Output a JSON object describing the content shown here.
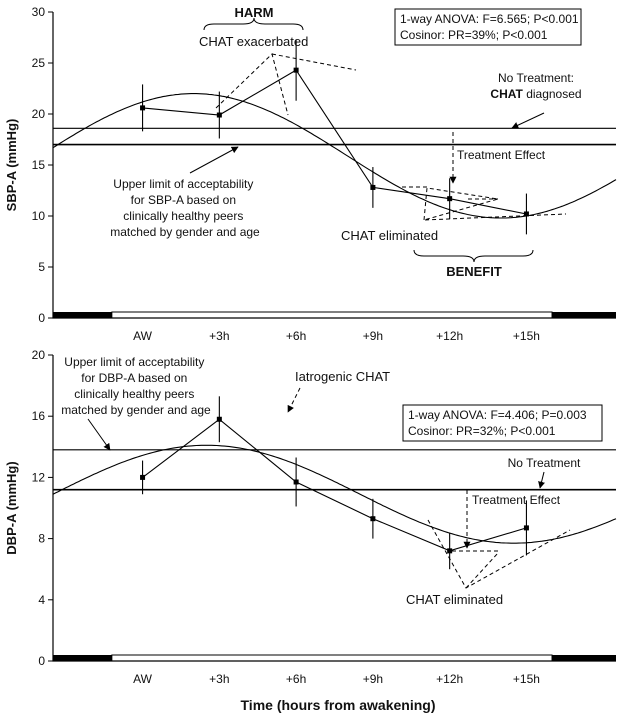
{
  "chart_data": [
    {
      "type": "line",
      "ylabel": "SBP-A (mmHg)",
      "ylim": [
        0,
        30
      ],
      "yticks": [
        0,
        5,
        10,
        15,
        20,
        25,
        30
      ],
      "xlim": [
        -3.5,
        18.5
      ],
      "categories": [
        "AW",
        "+3h",
        "+6h",
        "+9h",
        "+12h",
        "+15h"
      ],
      "category_x": [
        0,
        3,
        6,
        9,
        12,
        15
      ],
      "series": [
        {
          "x": [
            0,
            3,
            6,
            9,
            12,
            15
          ],
          "values": [
            20.6,
            19.9,
            24.3,
            12.8,
            11.7,
            10.2
          ],
          "err": [
            2.3,
            2.3,
            3.0,
            2.0,
            2.0,
            2.0
          ]
        }
      ],
      "cosinor": {
        "mesor": 15.9,
        "amplitude": 6.1,
        "peak": 2.0,
        "period": 24
      },
      "lines": [
        {
          "y": 18.6
        },
        {
          "y": 17.0
        }
      ],
      "stats_box": [
        "1-way ANOVA: F=6.565; P<0.001",
        "Cosinor: PR=39%; P<0.001"
      ],
      "annotations": {
        "harm": "HARM",
        "chat_exacerbated": "CHAT exacerbated",
        "no_treatment_1": "No Treatment:",
        "chat_diagnosed_bold": "CHAT",
        "chat_diagnosed_rest": " diagnosed",
        "treatment_effect": "Treatment Effect",
        "upper_limit": [
          "Upper limit of acceptability",
          "for SBP-A based on",
          "clinically healthy peers",
          "matched by gender and age"
        ],
        "chat_eliminated": "CHAT eliminated",
        "benefit": "BENEFIT"
      },
      "light_dark_bar": {
        "dark_until": -1.2,
        "light_until": 16.0
      }
    },
    {
      "type": "line",
      "ylabel": "DBP-A (mmHg)",
      "xlabel": "Time (hours from awakening)",
      "ylim": [
        0,
        20
      ],
      "yticks": [
        0,
        4,
        8,
        12,
        16,
        20
      ],
      "xlim": [
        -3.5,
        18.5
      ],
      "categories": [
        "AW",
        "+3h",
        "+6h",
        "+9h",
        "+12h",
        "+15h"
      ],
      "category_x": [
        0,
        3,
        6,
        9,
        12,
        15
      ],
      "series": [
        {
          "x": [
            0,
            3,
            6,
            9,
            12,
            15
          ],
          "values": [
            12.0,
            15.8,
            11.7,
            9.3,
            7.2,
            8.7
          ],
          "err": [
            1.1,
            1.5,
            1.6,
            1.3,
            1.2,
            1.8
          ]
        }
      ],
      "cosinor": {
        "mesor": 10.9,
        "amplitude": 3.2,
        "peak": 2.5,
        "period": 24
      },
      "lines": [
        {
          "y": 13.8
        },
        {
          "y": 11.2
        }
      ],
      "stats_box": [
        "1-way ANOVA: F=4.406; P=0.003",
        "Cosinor: PR=32%; P<0.001"
      ],
      "annotations": {
        "upper_limit": [
          "Upper limit of acceptability",
          "for DBP-A based on",
          "clinically healthy peers",
          "matched by gender and age"
        ],
        "iatrogenic_chat": "Iatrogenic CHAT",
        "no_treatment": "No Treatment",
        "treatment_effect": "Treatment Effect",
        "chat_eliminated": "CHAT eliminated"
      },
      "light_dark_bar": {
        "dark_until": -1.2,
        "light_until": 16.0
      }
    }
  ]
}
